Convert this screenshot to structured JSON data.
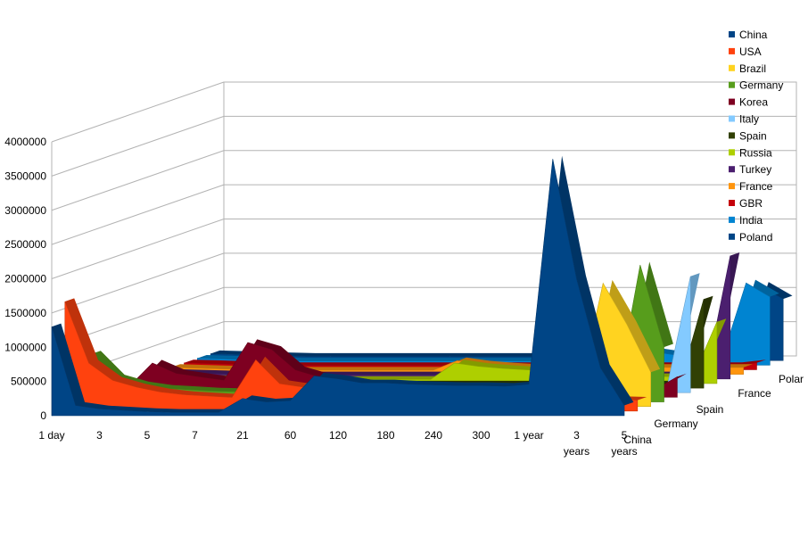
{
  "chart_data": {
    "type": "area",
    "style": "3d-depth",
    "categories": [
      "1 day",
      "",
      "3",
      "",
      "5",
      "",
      "7",
      "",
      "21",
      "",
      "60",
      "",
      "120",
      "",
      "180",
      "",
      "240",
      "",
      "300",
      "",
      "1 year",
      "",
      "3 years",
      "",
      "5 years"
    ],
    "ylim": [
      0,
      4000000
    ],
    "ytick_labels": [
      "0",
      "500000",
      "1000000",
      "1500000",
      "2000000",
      "2500000",
      "3000000",
      "3500000",
      "4000000"
    ],
    "depth_labels": [
      "China",
      "Germany",
      "Spain",
      "France",
      "Polar"
    ],
    "grid": true,
    "legend_position": "right",
    "series": [
      {
        "name": "China",
        "color": "#004586",
        "values": [
          1300000,
          150000,
          100000,
          80000,
          60000,
          50000,
          50000,
          50000,
          250000,
          200000,
          220000,
          580000,
          540000,
          480000,
          480000,
          460000,
          450000,
          440000,
          440000,
          430000,
          460000,
          3750000,
          2000000,
          700000,
          150000
        ]
      },
      {
        "name": "USA",
        "color": "#ff420e",
        "values": [
          1600000,
          700000,
          450000,
          350000,
          280000,
          240000,
          220000,
          200000,
          750000,
          400000,
          350000,
          300000,
          280000,
          270000,
          260000,
          250000,
          240000,
          230000,
          220000,
          210000,
          200000,
          190000,
          180000,
          170000,
          160000
        ]
      },
      {
        "name": "Brazil",
        "color": "#ffd320",
        "values": [
          300000,
          250000,
          200000,
          180000,
          160000,
          150000,
          140000,
          130000,
          120000,
          110000,
          100000,
          100000,
          100000,
          100000,
          100000,
          100000,
          100000,
          100000,
          100000,
          100000,
          100000,
          200000,
          1800000,
          1200000,
          500000
        ]
      },
      {
        "name": "Germany",
        "color": "#579d1c",
        "values": [
          700000,
          350000,
          250000,
          200000,
          180000,
          160000,
          150000,
          140000,
          130000,
          120000,
          120000,
          110000,
          110000,
          100000,
          100000,
          100000,
          100000,
          100000,
          100000,
          100000,
          100000,
          100000,
          100000,
          2000000,
          800000
        ]
      },
      {
        "name": "Korea",
        "color": "#7e0021",
        "values": [
          100000,
          150000,
          500000,
          350000,
          300000,
          250000,
          800000,
          700000,
          400000,
          300000,
          250000,
          200000,
          200000,
          180000,
          170000,
          160000,
          150000,
          140000,
          130000,
          120000,
          110000,
          100000,
          100000,
          100000,
          300000
        ]
      },
      {
        "name": "Italy",
        "color": "#83caff",
        "values": [
          150000,
          120000,
          100000,
          90000,
          80000,
          70000,
          70000,
          60000,
          60000,
          60000,
          60000,
          60000,
          60000,
          60000,
          60000,
          60000,
          60000,
          60000,
          60000,
          60000,
          60000,
          60000,
          60000,
          60000,
          1700000
        ]
      },
      {
        "name": "Spain",
        "color": "#314004",
        "values": [
          100000,
          90000,
          80000,
          70000,
          60000,
          60000,
          60000,
          60000,
          60000,
          60000,
          60000,
          60000,
          60000,
          60000,
          60000,
          60000,
          60000,
          60000,
          60000,
          60000,
          60000,
          60000,
          60000,
          60000,
          1300000
        ]
      },
      {
        "name": "Russia",
        "color": "#aecf00",
        "values": [
          100000,
          90000,
          80000,
          70000,
          60000,
          60000,
          60000,
          60000,
          60000,
          60000,
          60000,
          60000,
          60000,
          300000,
          250000,
          220000,
          200000,
          180000,
          160000,
          140000,
          120000,
          100000,
          100000,
          100000,
          900000
        ]
      },
      {
        "name": "Turkey",
        "color": "#4b1f6f",
        "values": [
          100000,
          90000,
          80000,
          70000,
          60000,
          60000,
          60000,
          60000,
          60000,
          60000,
          60000,
          60000,
          60000,
          60000,
          60000,
          60000,
          60000,
          60000,
          60000,
          60000,
          60000,
          60000,
          60000,
          60000,
          1800000
        ]
      },
      {
        "name": "France",
        "color": "#ff950e",
        "values": [
          100000,
          90000,
          80000,
          70000,
          60000,
          60000,
          60000,
          60000,
          60000,
          60000,
          60000,
          60000,
          200000,
          150000,
          120000,
          100000,
          450000,
          300000,
          200000,
          150000,
          100000,
          100000,
          100000,
          100000,
          100000
        ]
      },
      {
        "name": "GBR",
        "color": "#c5000b",
        "values": [
          100000,
          90000,
          80000,
          70000,
          60000,
          60000,
          60000,
          60000,
          60000,
          60000,
          60000,
          60000,
          60000,
          60000,
          60000,
          60000,
          60000,
          60000,
          60000,
          60000,
          60000,
          60000,
          60000,
          60000,
          100000
        ]
      },
      {
        "name": "India",
        "color": "#0084d1",
        "values": [
          100000,
          90000,
          80000,
          70000,
          60000,
          60000,
          60000,
          60000,
          60000,
          60000,
          60000,
          60000,
          60000,
          60000,
          60000,
          60000,
          60000,
          400000,
          300000,
          200000,
          150000,
          100000,
          100000,
          1200000,
          1000000
        ]
      },
      {
        "name": "Poland",
        "color": "#004586",
        "values": [
          100000,
          90000,
          80000,
          70000,
          60000,
          60000,
          60000,
          60000,
          60000,
          60000,
          60000,
          60000,
          60000,
          60000,
          60000,
          60000,
          60000,
          60000,
          60000,
          60000,
          60000,
          60000,
          60000,
          1100000,
          900000
        ]
      }
    ]
  }
}
